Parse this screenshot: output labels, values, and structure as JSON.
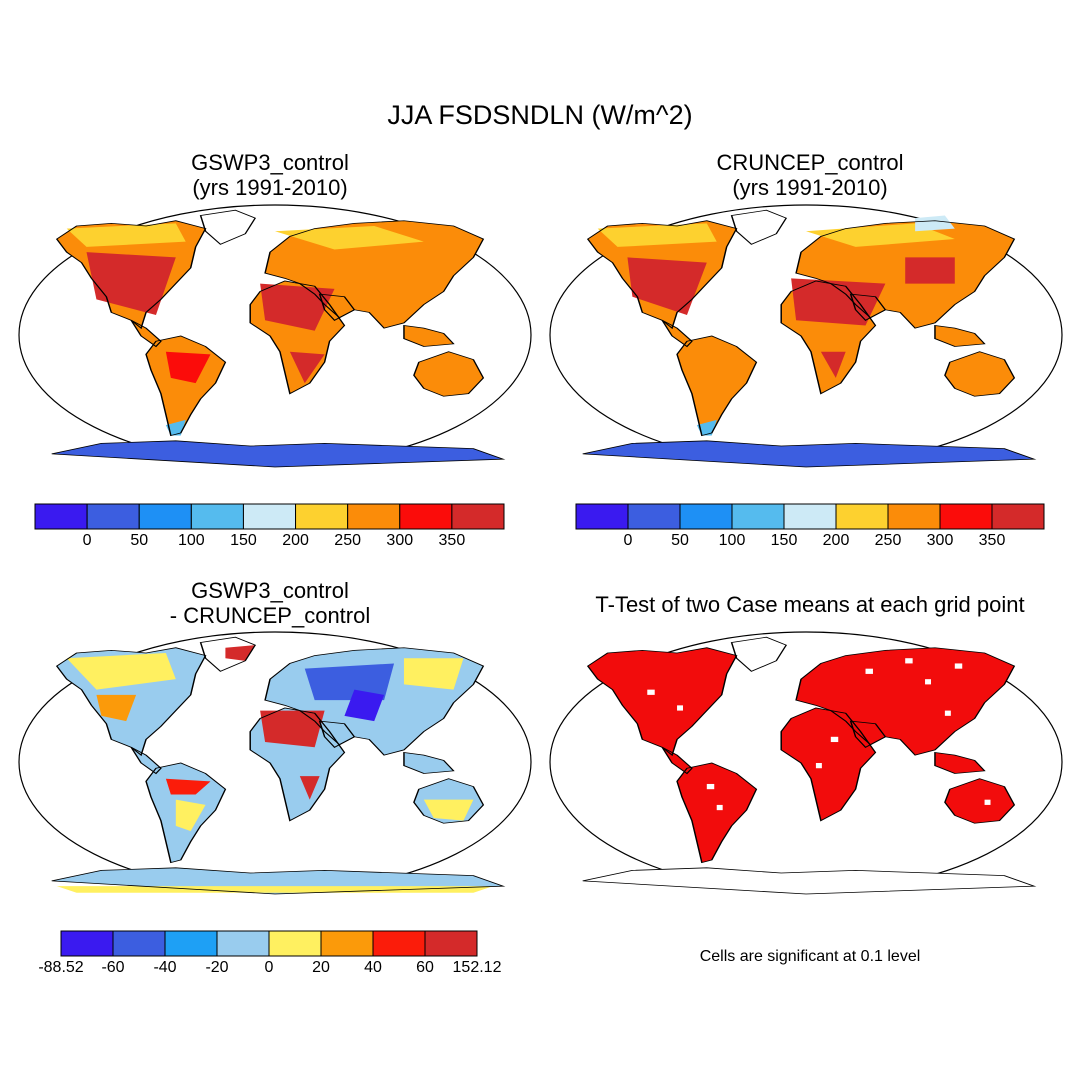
{
  "title": "JJA FSDSNDLN (W/m^2)",
  "panels": [
    {
      "id": "gswp3",
      "title_line1": "GSWP3_control",
      "title_line2": "(yrs 1991-2010)"
    },
    {
      "id": "cruncep",
      "title_line1": "CRUNCEP_control",
      "title_line2": "(yrs 1991-2010)"
    },
    {
      "id": "diff",
      "title_line1": "GSWP3_control",
      "title_line2": "- CRUNCEP_control"
    },
    {
      "id": "ttest",
      "title_line1": "T-Test of two Case means at each grid point"
    }
  ],
  "colorbar_abs": {
    "colors": [
      "#3a1af0",
      "#3c5ee0",
      "#1e90f5",
      "#55bbee",
      "#cdeaf6",
      "#fdd12f",
      "#fb8c09",
      "#fb0c0a",
      "#d42a2a"
    ],
    "labels": [
      "0",
      "50",
      "100",
      "150",
      "200",
      "250",
      "300",
      "350"
    ]
  },
  "colorbar_diff": {
    "colors": [
      "#3a1af0",
      "#3c5ee0",
      "#1ea0f5",
      "#99ccee",
      "#fff060",
      "#fb9a0a",
      "#fb1c0a",
      "#d42a2a"
    ],
    "labels": [
      "-88.52",
      "-60",
      "-40",
      "-20",
      "0",
      "20",
      "40",
      "60",
      "152.12"
    ]
  },
  "significance_note": "Cells are significant at 0.1 level",
  "significance_color": "#f20c0c"
}
